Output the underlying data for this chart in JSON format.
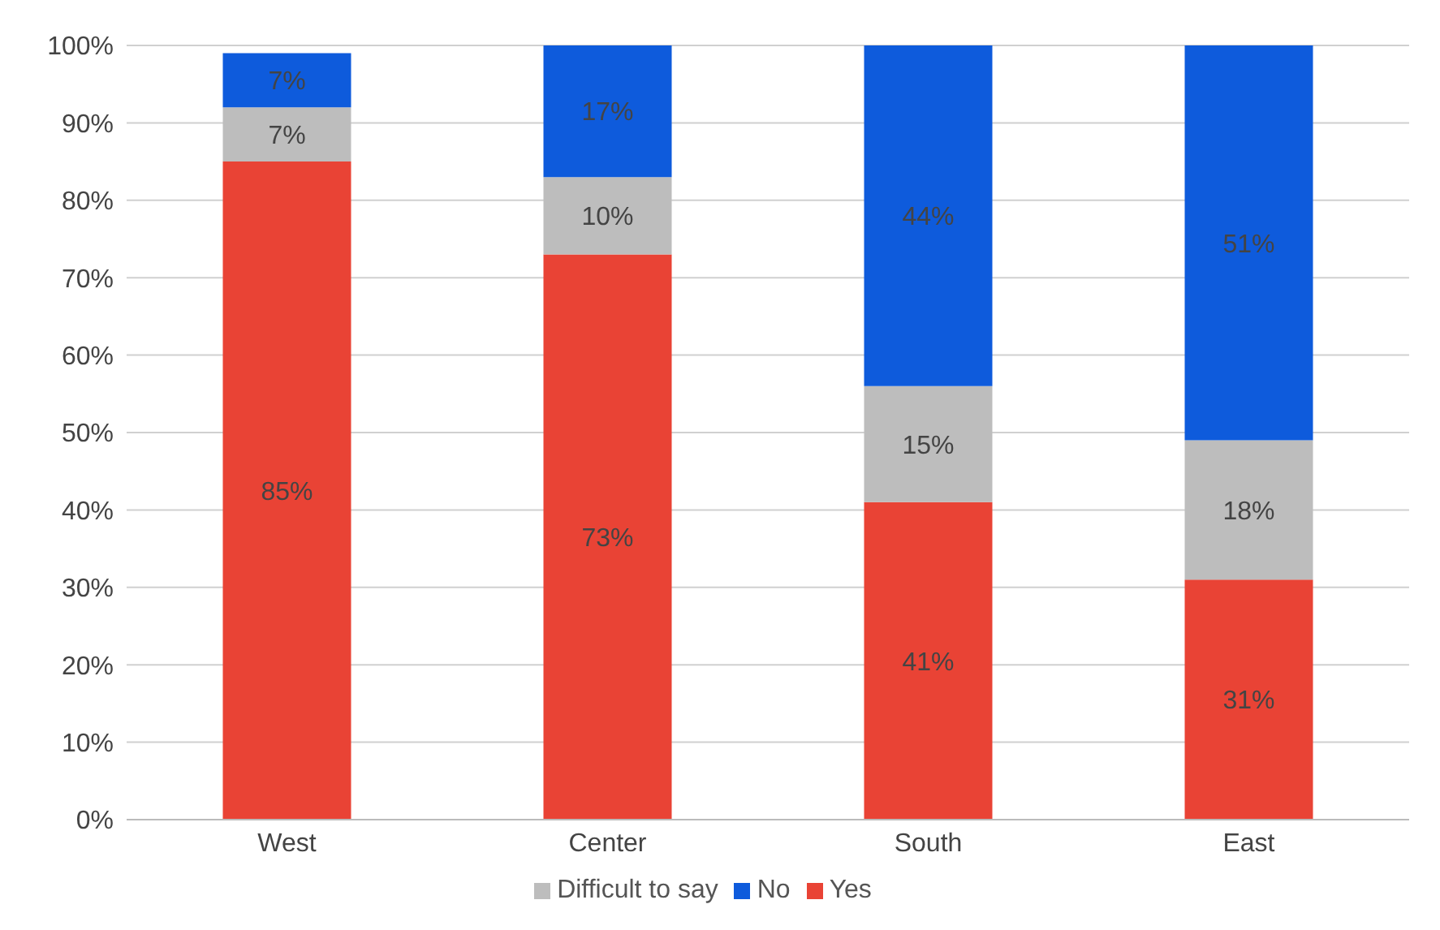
{
  "chart_data": {
    "type": "bar",
    "stacked": true,
    "categories": [
      "West",
      "Center",
      "South",
      "East"
    ],
    "series": [
      {
        "name": "Yes",
        "color": "#e94335",
        "values": [
          85,
          73,
          41,
          31
        ],
        "value_labels": [
          "85%",
          "73%",
          "41%",
          "31%"
        ]
      },
      {
        "name": "Difficult to say",
        "color": "#bdbdbd",
        "values": [
          7,
          10,
          15,
          18
        ],
        "value_labels": [
          "7%",
          "10%",
          "15%",
          "18%"
        ]
      },
      {
        "name": "No",
        "color": "#0e5bdc",
        "values": [
          7,
          17,
          44,
          51
        ],
        "value_labels": [
          "7%",
          "17%",
          "44%",
          "51%"
        ]
      }
    ],
    "ylim": [
      0,
      100
    ],
    "yticks": [
      {
        "value": 0,
        "label": "0%"
      },
      {
        "value": 10,
        "label": "10%"
      },
      {
        "value": 20,
        "label": "20%"
      },
      {
        "value": 30,
        "label": "30%"
      },
      {
        "value": 40,
        "label": "40%"
      },
      {
        "value": 50,
        "label": "50%"
      },
      {
        "value": 60,
        "label": "60%"
      },
      {
        "value": 70,
        "label": "70%"
      },
      {
        "value": 80,
        "label": "80%"
      },
      {
        "value": 90,
        "label": "90%"
      },
      {
        "value": 100,
        "label": "100%"
      }
    ],
    "grid": "y",
    "legend": "bottom"
  }
}
